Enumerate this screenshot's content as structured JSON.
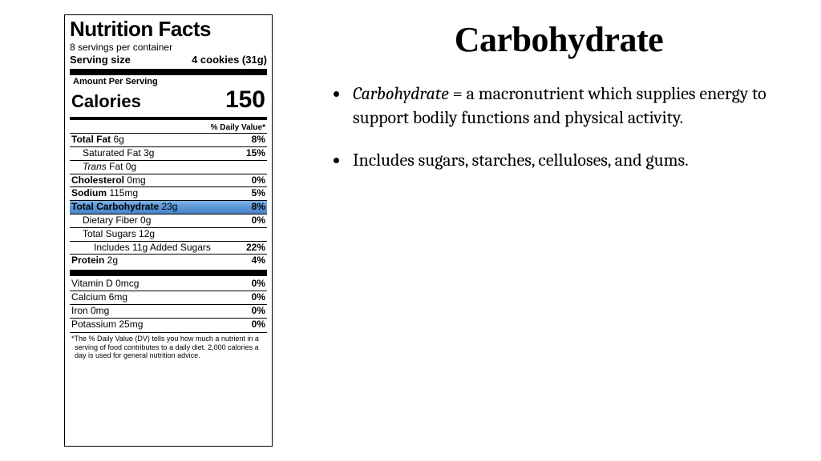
{
  "label": {
    "title": "Nutrition Facts",
    "servings_per_container": "8 servings per container",
    "serving_size_label": "Serving size",
    "serving_size_value": "4 cookies (31g)",
    "amount_per_serving": "Amount Per Serving",
    "calories_label": "Calories",
    "calories_value": "150",
    "dv_header": "% Daily Value*",
    "rows": [
      {
        "name": "Total Fat",
        "amount": "6g",
        "dv": "8%",
        "bold": true,
        "indent": 0
      },
      {
        "name": "Saturated Fat",
        "amount": "3g",
        "dv": "15%",
        "bold": false,
        "indent": 1
      },
      {
        "name_html": "<em class='trans'>Trans</em> Fat",
        "amount": "0g",
        "dv": "",
        "bold": false,
        "indent": 1
      },
      {
        "name": "Cholesterol",
        "amount": "0mg",
        "dv": "0%",
        "bold": true,
        "indent": 0
      },
      {
        "name": "Sodium",
        "amount": "115mg",
        "dv": "5%",
        "bold": true,
        "indent": 0
      },
      {
        "name": "Total Carbohydrate",
        "amount": "23g",
        "dv": "8%",
        "bold": true,
        "indent": 0,
        "highlight": true
      },
      {
        "name": "Dietary Fiber",
        "amount": "0g",
        "dv": "0%",
        "bold": false,
        "indent": 1
      },
      {
        "name": "Total Sugars",
        "amount": "12g",
        "dv": "",
        "bold": false,
        "indent": 1
      },
      {
        "name": "Includes 11g Added Sugars",
        "amount": "",
        "dv": "22%",
        "bold": false,
        "indent": 2
      },
      {
        "name": "Protein",
        "amount": "2g",
        "dv": "4%",
        "bold": true,
        "indent": 0
      }
    ],
    "micronutrients": [
      {
        "name": "Vitamin D",
        "amount": "0mcg",
        "dv": "0%"
      },
      {
        "name": "Calcium",
        "amount": "6mg",
        "dv": "0%"
      },
      {
        "name": "Iron",
        "amount": "0mg",
        "dv": "0%"
      },
      {
        "name": "Potassium",
        "amount": "25mg",
        "dv": "0%"
      }
    ],
    "footnote": "*The % Daily Value (DV) tells you how much a nutrient in a serving of food contributes to a daily diet. 2,000 calories a day is used for general nutrition advice."
  },
  "slide": {
    "heading": "Carbohydrate",
    "bullets": [
      {
        "term": "Carbohydrate",
        "rest": " = a macronutrient which supplies energy to support bodily functions and physical activity."
      },
      {
        "text": "Includes sugars, starches, celluloses, and gums."
      }
    ]
  },
  "colors": {
    "highlight_top": "#7fb3e8",
    "highlight_bottom": "#4a85c8",
    "background": "#ffffff",
    "text": "#000000"
  }
}
